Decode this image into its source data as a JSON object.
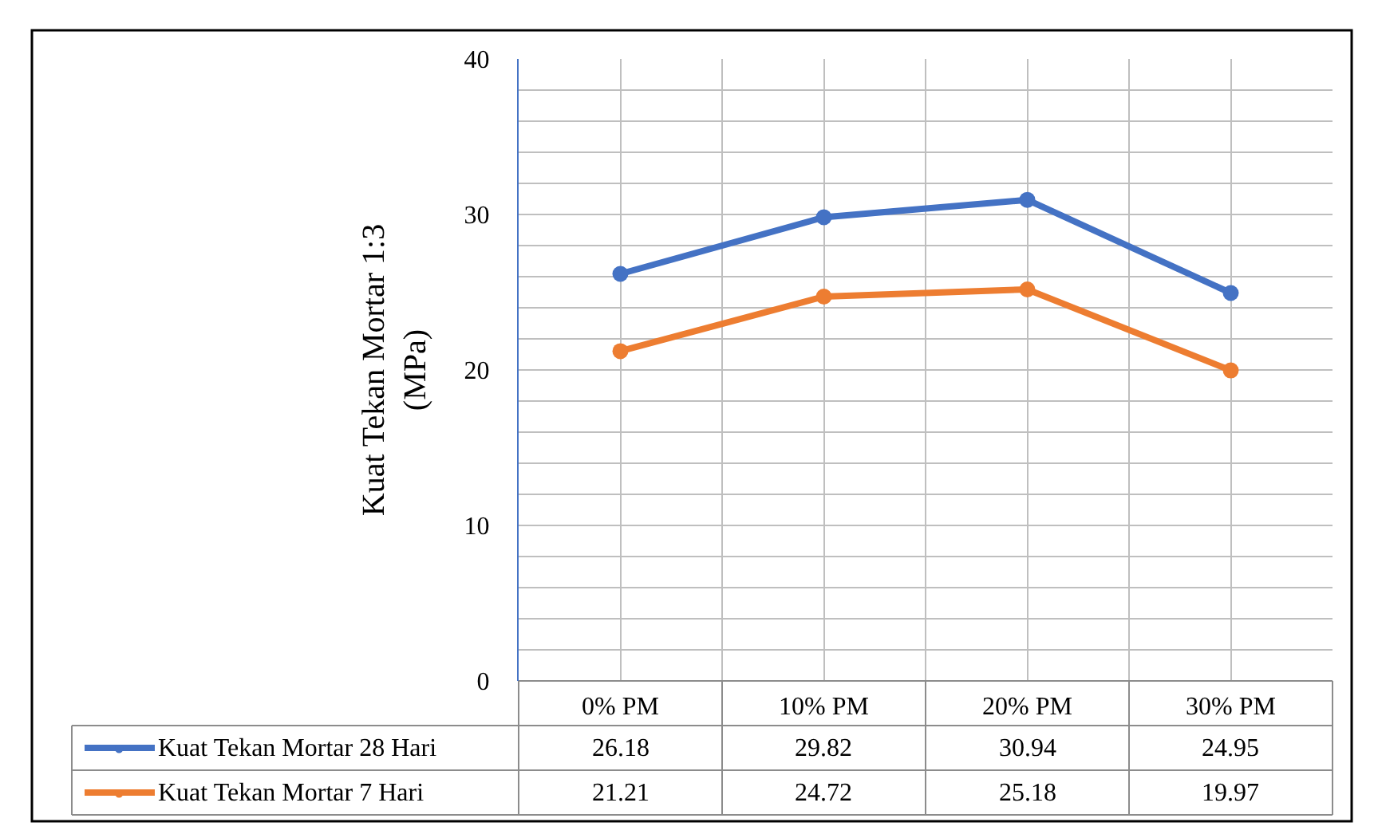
{
  "chart_data": {
    "type": "line",
    "ylabel": "Kuat Tekan Mortar 1:3\n(MPa)",
    "categories": [
      "0% PM",
      "10% PM",
      "20% PM",
      "30% PM"
    ],
    "series": [
      {
        "name": "Kuat Tekan Mortar 28 Hari",
        "color": "#4472c4",
        "values": [
          26.18,
          29.82,
          30.94,
          24.95
        ]
      },
      {
        "name": "Kuat Tekan Mortar 7 Hari",
        "color": "#ed7d31",
        "values": [
          21.21,
          24.72,
          25.18,
          19.97
        ]
      }
    ],
    "ylim": [
      0,
      40
    ],
    "yticks": [
      0,
      10,
      20,
      30,
      40
    ],
    "grid": true,
    "marker": "circle",
    "line_style": "solid",
    "data_labels": true,
    "legend": "bottom"
  }
}
